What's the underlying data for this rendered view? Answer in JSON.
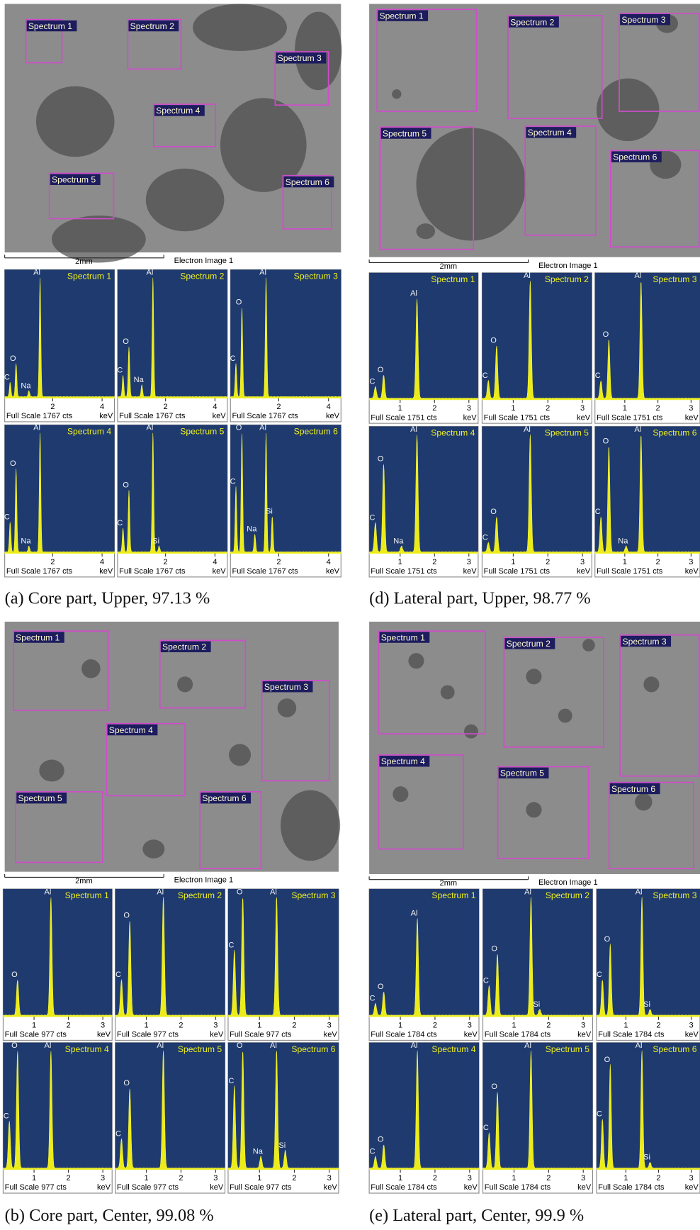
{
  "panels": [
    {
      "caption": "(a) Core part, Upper, 97.13 %",
      "scale_bar": "2mm",
      "image_label": "Electron Image 1",
      "regions": [
        "Spectrum 1",
        "Spectrum 2",
        "Spectrum 3",
        "Spectrum 4",
        "Spectrum 5",
        "Spectrum 6"
      ],
      "xlim": [
        0.06,
        4.5
      ],
      "xticks": [
        2,
        4
      ],
      "spectra": [
        {
          "title": "Spectrum 1",
          "peaks": [
            "Al",
            "O",
            "C",
            "Na"
          ],
          "full_scale": "Full Scale 1767 cts",
          "unit": "keV"
        },
        {
          "title": "Spectrum 2",
          "peaks": [
            "Al",
            "O",
            "C",
            "Na"
          ],
          "full_scale": "Full Scale 1767 cts",
          "unit": "keV"
        },
        {
          "title": "Spectrum 3",
          "peaks": [
            "Al",
            "O",
            "C"
          ],
          "full_scale": "Full Scale 1767 cts",
          "unit": "keV"
        },
        {
          "title": "Spectrum 4",
          "peaks": [
            "Al",
            "O",
            "C",
            "Na"
          ],
          "full_scale": "Full Scale 1767 cts",
          "unit": "keV"
        },
        {
          "title": "Spectrum 5",
          "peaks": [
            "Al",
            "O",
            "C",
            "Si"
          ],
          "full_scale": "Full Scale 1767 cts",
          "unit": "keV"
        },
        {
          "title": "Spectrum 6",
          "peaks": [
            "O",
            "Al",
            "C",
            "Na",
            "Si"
          ],
          "full_scale": "Full Scale 1767 cts",
          "unit": "keV"
        }
      ]
    },
    {
      "caption": "(d) Lateral part, Upper, 98.77 %",
      "scale_bar": "2mm",
      "image_label": "Electron Image 1",
      "regions": [
        "Spectrum 1",
        "Spectrum 2",
        "Spectrum 3",
        "Spectrum 5",
        "Spectrum 4",
        "Spectrum 6"
      ],
      "xlim": [
        0.1,
        3.27
      ],
      "xticks": [
        1,
        2,
        3
      ],
      "spectra": [
        {
          "title": "Spectrum 1",
          "peaks": [
            "Al",
            "O",
            "C"
          ],
          "full_scale": "Full Scale 1751 cts",
          "unit": "keV"
        },
        {
          "title": "Spectrum 2",
          "peaks": [
            "Al",
            "O",
            "C"
          ],
          "full_scale": "Full Scale 1751 cts",
          "unit": "keV"
        },
        {
          "title": "Spectrum 3",
          "peaks": [
            "Al",
            "O",
            "C"
          ],
          "full_scale": "Full Scale 1751 cts",
          "unit": "keV"
        },
        {
          "title": "Spectrum 4",
          "peaks": [
            "Al",
            "O",
            "C",
            "Na"
          ],
          "full_scale": "Full Scale 1751 cts",
          "unit": "keV"
        },
        {
          "title": "Spectrum 5",
          "peaks": [
            "Al",
            "O",
            "C"
          ],
          "full_scale": "Full Scale 1751 cts",
          "unit": "keV"
        },
        {
          "title": "Spectrum 6",
          "peaks": [
            "Al",
            "O",
            "C",
            "Na"
          ],
          "full_scale": "Full Scale 1751 cts",
          "unit": "keV"
        }
      ]
    },
    {
      "caption": "(b) Core part, Center, 99.08 %",
      "scale_bar": "2mm",
      "image_label": "Electron Image 1",
      "regions": [
        "Spectrum 1",
        "Spectrum 2",
        "Spectrum 3",
        "Spectrum 4",
        "Spectrum 5",
        "Spectrum 6"
      ],
      "xlim": [
        0.1,
        3.27
      ],
      "xticks": [
        1,
        2,
        3
      ],
      "spectra": [
        {
          "title": "Spectrum 1",
          "peaks": [
            "Al",
            "O"
          ],
          "full_scale": "Full Scale 977 cts",
          "unit": "keV"
        },
        {
          "title": "Spectrum 2",
          "peaks": [
            "Al",
            "O",
            "C"
          ],
          "full_scale": "Full Scale 977 cts",
          "unit": "keV"
        },
        {
          "title": "Spectrum 3",
          "peaks": [
            "O",
            "Al",
            "C"
          ],
          "full_scale": "Full Scale 977 cts",
          "unit": "keV"
        },
        {
          "title": "Spectrum 4",
          "peaks": [
            "O",
            "Al",
            "C"
          ],
          "full_scale": "Full Scale 977 cts",
          "unit": "keV"
        },
        {
          "title": "Spectrum 5",
          "peaks": [
            "Al",
            "O",
            "C"
          ],
          "full_scale": "Full Scale 977 cts",
          "unit": "keV"
        },
        {
          "title": "Spectrum 6",
          "peaks": [
            "O",
            "Al",
            "C",
            "Na",
            "Si"
          ],
          "full_scale": "Full Scale 977 cts",
          "unit": "keV"
        }
      ]
    },
    {
      "caption": "(e) Lateral part, Center, 99.9 %",
      "scale_bar": "2mm",
      "image_label": "Electron Image 1",
      "regions": [
        "Spectrum 1",
        "Spectrum 2",
        "Spectrum 3",
        "Spectrum 4",
        "Spectrum 5",
        "Spectrum 6"
      ],
      "xlim": [
        0.1,
        3.27
      ],
      "xticks": [
        1,
        2,
        3
      ],
      "spectra": [
        {
          "title": "Spectrum 1",
          "peaks": [
            "Al",
            "O",
            "C"
          ],
          "full_scale": "Full Scale 1784 cts",
          "unit": "keV"
        },
        {
          "title": "Spectrum 2",
          "peaks": [
            "Al",
            "O",
            "C",
            "Si"
          ],
          "full_scale": "Full Scale 1784 cts",
          "unit": "keV"
        },
        {
          "title": "Spectrum 3",
          "peaks": [
            "Al",
            "O",
            "C",
            "Si"
          ],
          "full_scale": "Full Scale 1784 cts",
          "unit": "keV"
        },
        {
          "title": "Spectrum 4",
          "peaks": [
            "Al",
            "O",
            "C"
          ],
          "full_scale": "Full Scale 1784 cts",
          "unit": "keV"
        },
        {
          "title": "Spectrum 5",
          "peaks": [
            "Al",
            "O",
            "C"
          ],
          "full_scale": "Full Scale 1784 cts",
          "unit": "keV"
        },
        {
          "title": "Spectrum 6",
          "peaks": [
            "Al",
            "O",
            "C",
            "Si"
          ],
          "full_scale": "Full Scale 1784 cts",
          "unit": "keV"
        }
      ]
    }
  ]
}
